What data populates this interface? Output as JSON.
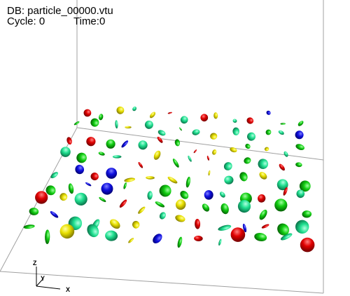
{
  "hud": {
    "db_label": "DB: particle_00000.vtu",
    "cycle_label": "Cycle: 0",
    "time_label": "Time:0"
  },
  "triad": {
    "x": "X",
    "y": "Y",
    "z": "Z"
  },
  "colors": {
    "red": "#e00000",
    "green": "#10cc10",
    "blue": "#1010e0",
    "yellow": "#e8e000",
    "teal": "#20e090",
    "bounding_box": "#a0a0a0"
  },
  "particle_color_order": [
    "green",
    "red",
    "yellow",
    "blue",
    "teal",
    "green",
    "yellow",
    "green",
    "red",
    "teal"
  ]
}
